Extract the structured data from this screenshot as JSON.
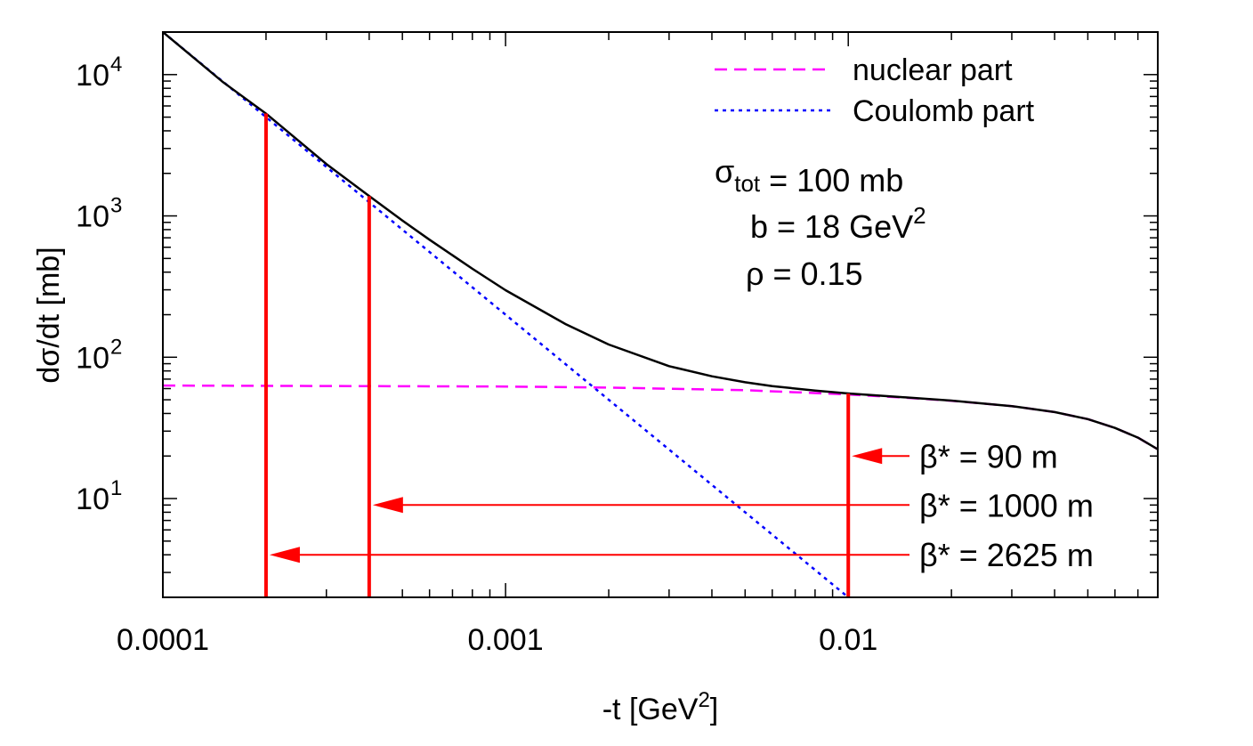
{
  "chart_data": {
    "type": "line",
    "xscale": "log",
    "yscale": "log",
    "xlim": [
      0.0001,
      0.08
    ],
    "ylim": [
      2,
      20000
    ],
    "xlabel": "-t [GeV",
    "xlabel_sup": "2",
    "xlabel_end": "]",
    "ylabel": "dσ/dt [mb]",
    "x_ticks": [
      {
        "value": 0.0001,
        "label": "0.0001"
      },
      {
        "value": 0.001,
        "label": "0.001"
      },
      {
        "value": 0.01,
        "label": "0.01"
      }
    ],
    "y_ticks": [
      {
        "value": 10,
        "base": "10",
        "exp": "1"
      },
      {
        "value": 100,
        "base": "10",
        "exp": "2"
      },
      {
        "value": 1000,
        "base": "10",
        "exp": "3"
      },
      {
        "value": 10000,
        "base": "10",
        "exp": "4"
      }
    ],
    "legend": {
      "position": "top-right",
      "entries": [
        {
          "label": "nuclear part",
          "color": "#ff00ff",
          "style": "dashed"
        },
        {
          "label": "Coulomb part",
          "color": "#0000ff",
          "style": "dotted"
        }
      ]
    },
    "params": [
      {
        "parts": [
          {
            "t": "σ"
          },
          {
            "t": "tot",
            "sub": true
          },
          {
            "t": " = 100 mb"
          }
        ]
      },
      {
        "parts": [
          {
            "t": "b = 18 GeV"
          },
          {
            "t": "2",
            "sup": true
          }
        ]
      },
      {
        "parts": [
          {
            "t": "ρ = 0.15"
          }
        ]
      }
    ],
    "series": [
      {
        "color": "#000000",
        "style": "solid",
        "x": [
          0.0001,
          0.00015,
          0.0002,
          0.0003,
          0.0004,
          0.0005,
          0.0006,
          0.0008,
          0.001,
          0.0015,
          0.002,
          0.003,
          0.004,
          0.005,
          0.006,
          0.008,
          0.01,
          0.015,
          0.02,
          0.03,
          0.04,
          0.05,
          0.06,
          0.07,
          0.08
        ],
        "values": [
          20000,
          8830,
          5300,
          2330,
          1380,
          927,
          678,
          423,
          298,
          171,
          123,
          86.5,
          73.3,
          66.5,
          62.5,
          58,
          55.4,
          51.8,
          49.3,
          45.1,
          40.9,
          36.5,
          31.6,
          27,
          22.3
        ]
      },
      {
        "name": "nuclear part",
        "color": "#ff00ff",
        "style": "dashed",
        "x": [
          0.0001,
          0.001,
          0.002,
          0.005,
          0.01,
          0.015,
          0.02,
          0.03,
          0.04,
          0.05,
          0.06,
          0.07,
          0.08
        ],
        "values": [
          63,
          62,
          61,
          58.5,
          54.5,
          51.5,
          49.2,
          45.1,
          40.9,
          36.5,
          31.6,
          27,
          22.3
        ]
      },
      {
        "name": "Coulomb part",
        "color": "#0000ff",
        "style": "dotted",
        "x": [
          0.0001,
          0.01
        ],
        "values": [
          20000,
          2
        ]
      }
    ],
    "markers": [
      {
        "label": "β* = 90 m",
        "t_min": 0.01,
        "cross_section": 55.4,
        "arrow_y": 20
      },
      {
        "label": "β* = 1000 m",
        "t_min": 0.0004,
        "cross_section": 1380,
        "arrow_y": 9
      },
      {
        "label": "β* = 2625 m",
        "t_min": 0.0002,
        "cross_section": 5300,
        "arrow_y": 4
      }
    ],
    "colors": {
      "marker": "#ff0000",
      "frame": "#000000"
    }
  }
}
